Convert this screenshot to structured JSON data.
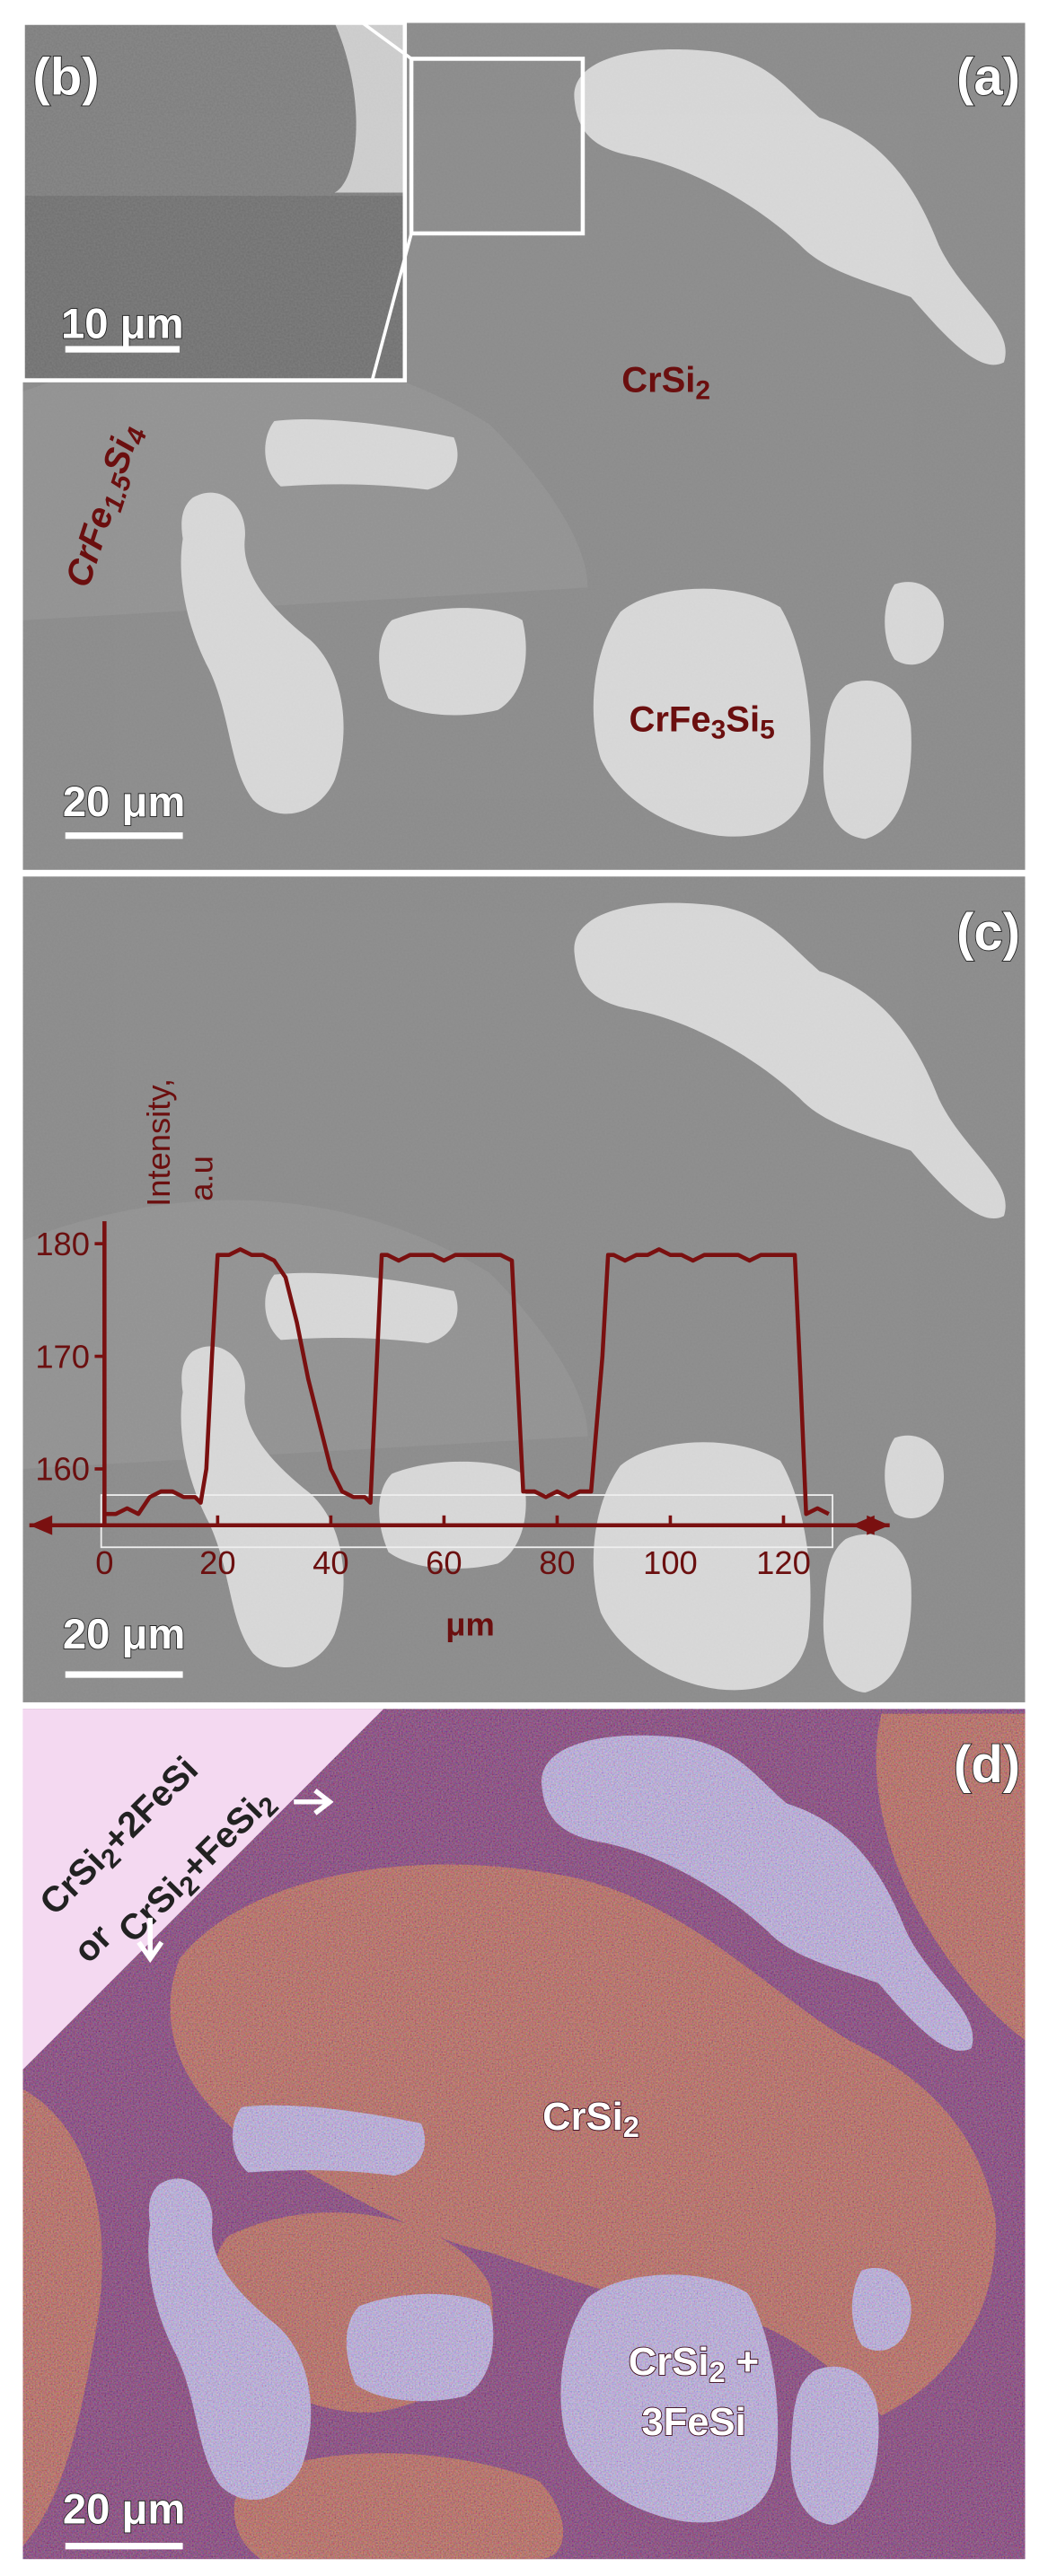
{
  "panels": {
    "a": {
      "label": "(a)",
      "scale_bar": "20 μm",
      "phases": [
        "CrSi2",
        "CrFe1.5Si4",
        "CrFe3Si5"
      ]
    },
    "b": {
      "label": "(b)",
      "scale_bar": "10 μm"
    },
    "c": {
      "label": "(c)",
      "scale_bar": "20 μm"
    },
    "d": {
      "label": "(d)",
      "scale_bar": "20 μm",
      "corner_notes": [
        "CrSi2+2FeSi",
        "or",
        "CrSi2+FeSi2"
      ],
      "phases": [
        "CrSi2",
        "CrSi2 +",
        "3FeSi"
      ]
    }
  },
  "chart_data": {
    "type": "line",
    "ylabel": [
      "Intensity,",
      "a.u"
    ],
    "xlabel": "μm",
    "color": "#7a1010",
    "xlim": [
      0,
      128
    ],
    "ylim": [
      155,
      182
    ],
    "xticks": [
      0,
      20,
      40,
      60,
      80,
      100,
      120
    ],
    "yticks": [
      160,
      170,
      180
    ],
    "x": [
      0,
      2,
      4,
      6,
      8,
      10,
      12,
      14,
      16,
      17,
      18,
      19,
      20,
      22,
      24,
      26,
      28,
      30,
      32,
      34,
      36,
      38,
      40,
      42,
      44,
      46,
      47,
      48,
      49,
      50,
      52,
      54,
      56,
      58,
      60,
      62,
      64,
      66,
      68,
      70,
      72,
      73,
      74,
      76,
      78,
      80,
      82,
      84,
      86,
      88,
      89,
      90,
      92,
      94,
      96,
      98,
      100,
      102,
      104,
      106,
      108,
      110,
      112,
      114,
      116,
      118,
      120,
      122,
      123,
      124,
      126,
      128
    ],
    "values": [
      156,
      156,
      156.5,
      156,
      157.5,
      158,
      158,
      157.5,
      157.5,
      157,
      160,
      170,
      179,
      179,
      179.5,
      179,
      179,
      178.5,
      177,
      173,
      168,
      164,
      160,
      158,
      157.5,
      157.5,
      157,
      168,
      179,
      179,
      178.5,
      179,
      179,
      179,
      178.5,
      179,
      179,
      179,
      179,
      179,
      178.5,
      168,
      158,
      158,
      157.5,
      158,
      157.5,
      158,
      158,
      170,
      179,
      179,
      178.5,
      179,
      179,
      179.5,
      179,
      179,
      178.5,
      179,
      179,
      179,
      179,
      178.5,
      179,
      179,
      179,
      179,
      168,
      156,
      156.5,
      156
    ]
  }
}
